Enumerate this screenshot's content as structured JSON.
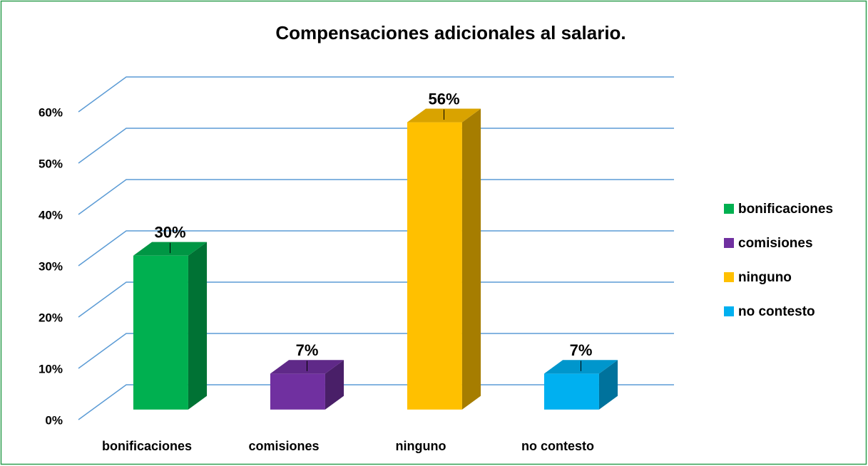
{
  "chart_data": {
    "type": "bar3d",
    "title": "Compensaciones adicionales al salario.",
    "categories": [
      "bonificaciones",
      "comisiones",
      "ninguno",
      "no contesto"
    ],
    "series": [
      {
        "name": "bonificaciones",
        "color": "#00b050"
      },
      {
        "name": "comisiones",
        "color": "#7030a0"
      },
      {
        "name": "ninguno",
        "color": "#ffc000"
      },
      {
        "name": "no contesto",
        "color": "#00b0f0"
      }
    ],
    "values": [
      30,
      7,
      56,
      7
    ],
    "value_labels": [
      "30%",
      "7%",
      "56%",
      "7%"
    ],
    "ylim": [
      0,
      60
    ],
    "yticks": [
      {
        "value": 0,
        "label": "0%"
      },
      {
        "value": 10,
        "label": "10%"
      },
      {
        "value": 20,
        "label": "20%"
      },
      {
        "value": 30,
        "label": "30%"
      },
      {
        "value": 40,
        "label": "40%"
      },
      {
        "value": 50,
        "label": "50%"
      },
      {
        "value": 60,
        "label": "60%"
      }
    ],
    "grid": true,
    "legend": "right"
  }
}
